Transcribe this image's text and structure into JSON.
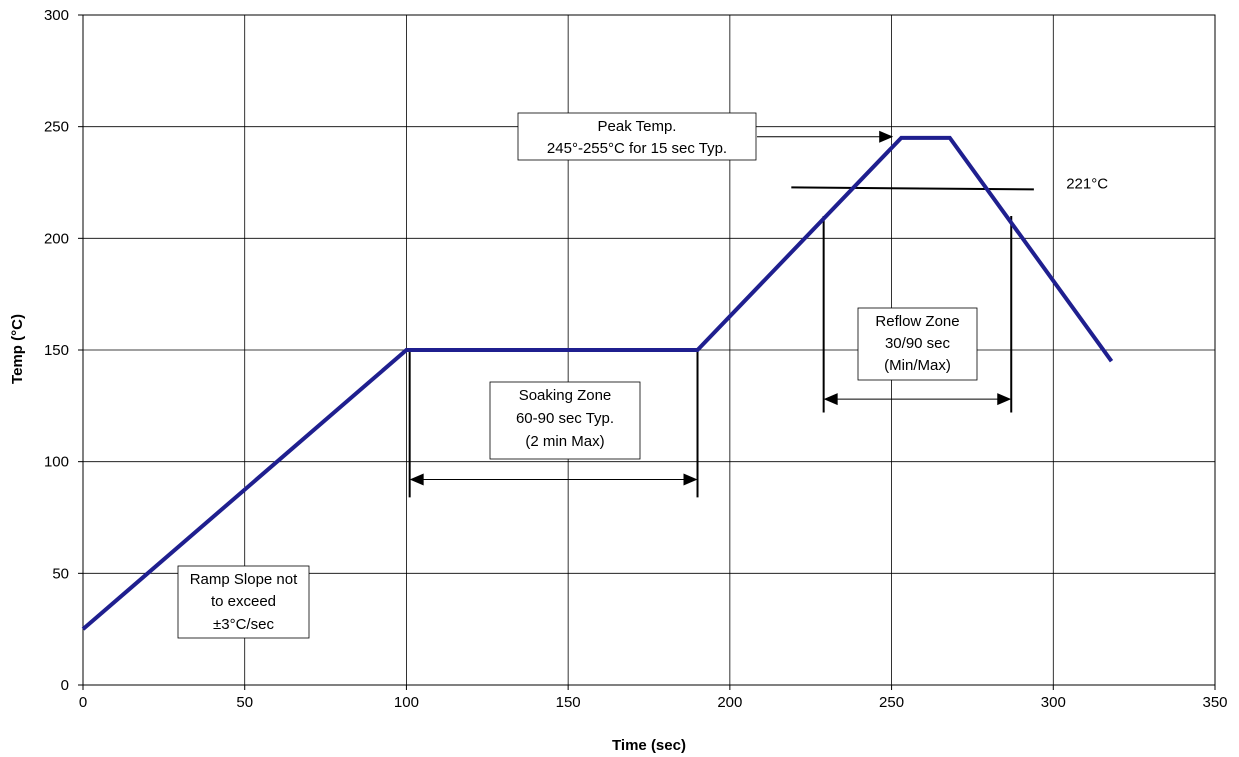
{
  "chart_data": {
    "type": "line",
    "xlabel": "Time (sec)",
    "ylabel": "Temp (°C)",
    "xlim": [
      0,
      350
    ],
    "ylim": [
      0,
      300
    ],
    "xticks": [
      0,
      50,
      100,
      150,
      200,
      250,
      300,
      350
    ],
    "yticks": [
      0,
      50,
      100,
      150,
      200,
      250,
      300
    ],
    "grid": true,
    "series": [
      {
        "color": "#1f1f8f",
        "x": [
          0,
          100,
          190,
          253,
          268,
          318
        ],
        "y": [
          25,
          150,
          150,
          245,
          245,
          145
        ]
      }
    ],
    "reference_line": {
      "y": 221,
      "label": "221°C"
    },
    "annotations": {
      "ramp": [
        "Ramp Slope not",
        "to exceed",
        "±3°C/sec"
      ],
      "soaking": [
        "Soaking Zone",
        "60-90 sec Typ.",
        "(2 min Max)"
      ],
      "reflow": [
        "Reflow Zone",
        "30/90 sec",
        "(Min/Max)"
      ],
      "peak": [
        "Peak Temp.",
        "245°-255°C for 15 sec Typ."
      ]
    }
  }
}
